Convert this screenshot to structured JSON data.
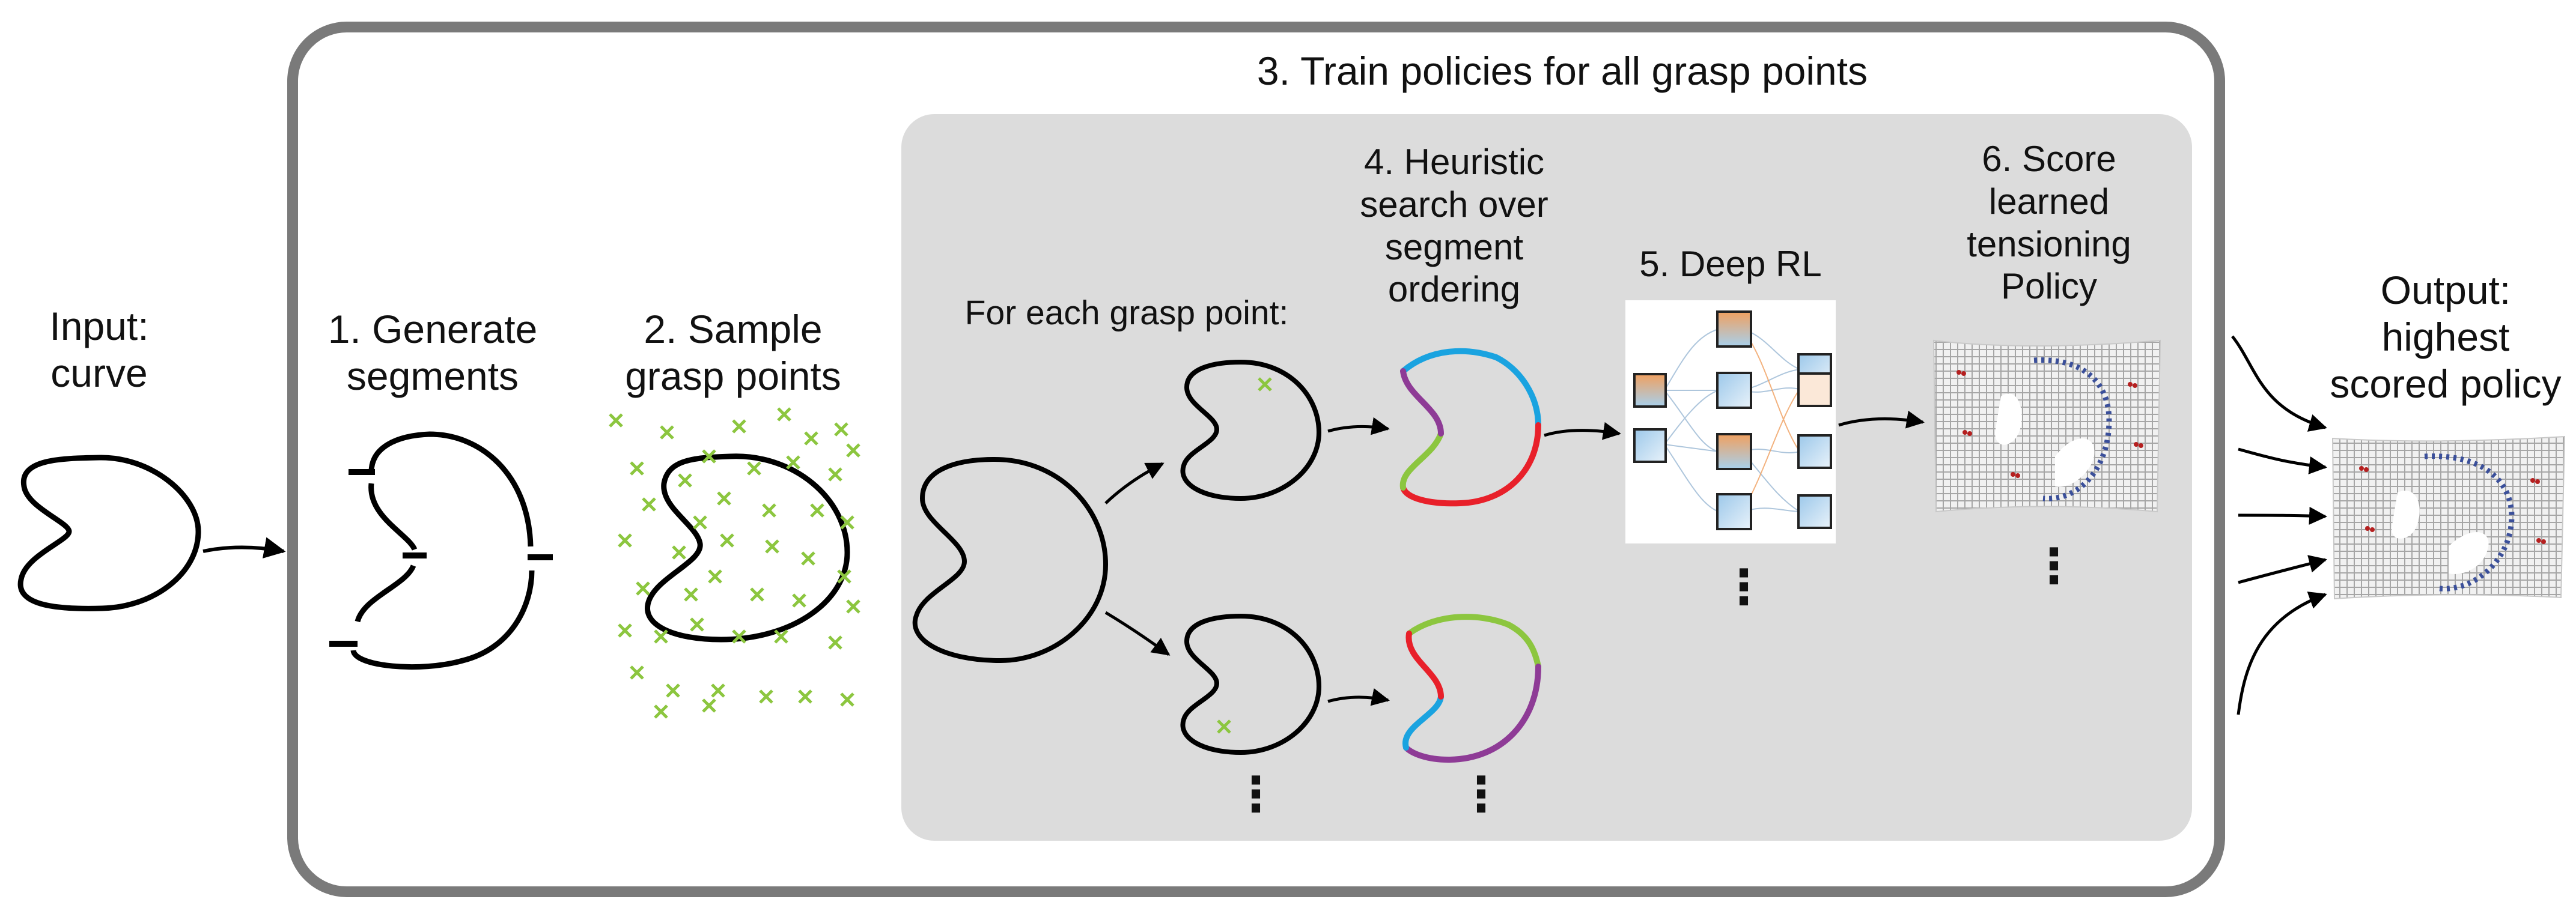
{
  "input": {
    "line1": "Input:",
    "line2": "curve"
  },
  "step1": {
    "line1": "1. Generate",
    "line2": "segments"
  },
  "step2": {
    "line1": "2. Sample",
    "line2": "grasp points"
  },
  "step3": {
    "title": "3. Train policies for all grasp points"
  },
  "for_each": {
    "label": "For each grasp point:"
  },
  "step4": {
    "line1": "4. Heuristic",
    "line2": "search over",
    "line3": "segment",
    "line4": "ordering"
  },
  "step5": {
    "label": "5. Deep RL"
  },
  "step6": {
    "line1": "6. Score",
    "line2": "learned",
    "line3": "tensioning",
    "line4": "Policy"
  },
  "output": {
    "line1": "Output:",
    "line2": "highest",
    "line3": "scored policy"
  },
  "ellipsis": "⋮",
  "colors": {
    "outer_border": "#7a7a7a",
    "inner_panel": "#dcdcdc",
    "grasp_marker": "#8cc63f",
    "segment_blue": "#1aa3e0",
    "segment_red": "#e8202a",
    "segment_green": "#8cc63f",
    "segment_purple": "#8e3b96",
    "curve": "#000000"
  }
}
